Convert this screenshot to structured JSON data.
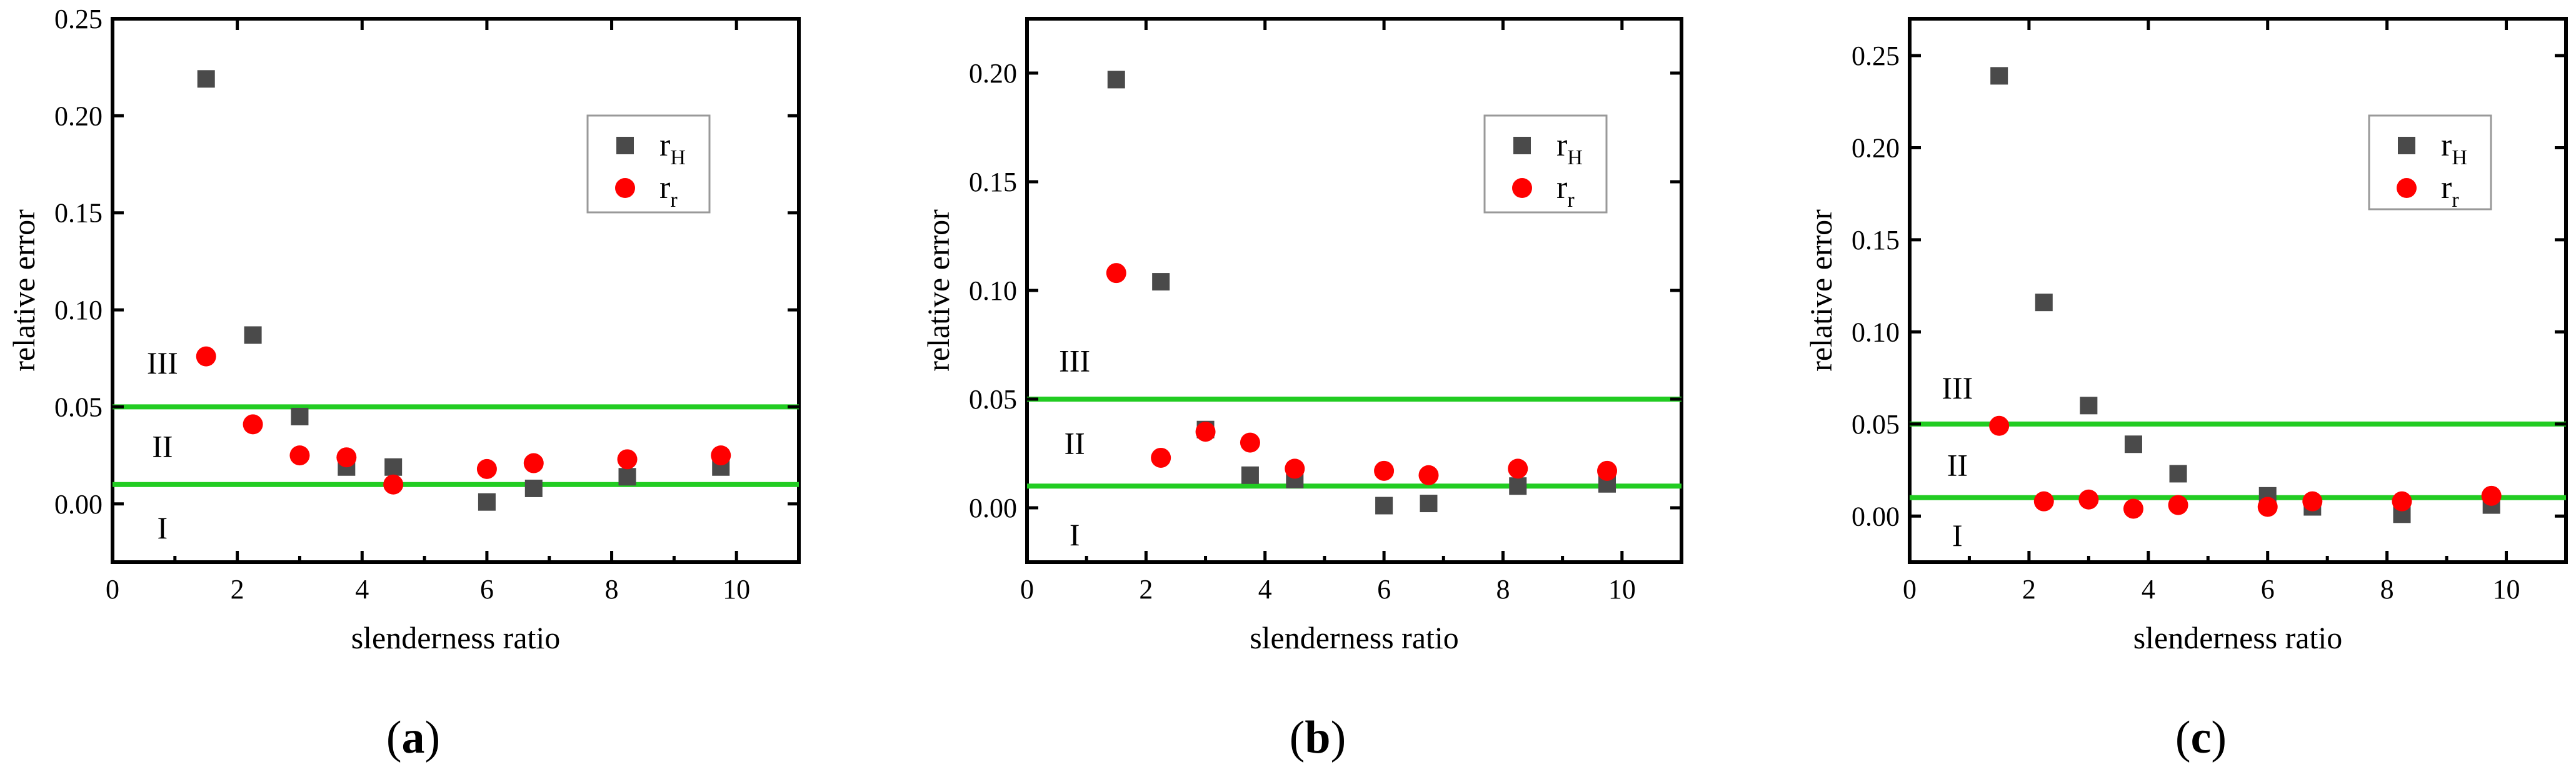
{
  "chart_data": [
    {
      "type": "scatter",
      "panel": "(a)",
      "caption_open": "(",
      "caption_letter": "a",
      "caption_close": ")",
      "xlabel": "slenderness ratio",
      "ylabel": "relative error",
      "xlim": [
        0,
        11
      ],
      "ylim": [
        -0.03,
        0.25
      ],
      "xticks": [
        0,
        2,
        4,
        6,
        8,
        10
      ],
      "xtick_labels": [
        "0",
        "2",
        "4",
        "6",
        "8",
        "10"
      ],
      "yticks": [
        0.0,
        0.05,
        0.1,
        0.15,
        0.2,
        0.25
      ],
      "ytick_labels": [
        "0.00",
        "0.05",
        "0.10",
        "0.15",
        "0.20",
        "0.25"
      ],
      "reference_lines": [
        0.01,
        0.05
      ],
      "regions": [
        {
          "label": "I",
          "x": 0.8,
          "y": -0.012
        },
        {
          "label": "II",
          "x": 0.8,
          "y": 0.03
        },
        {
          "label": "III",
          "x": 0.8,
          "y": 0.073
        }
      ],
      "legend_location": "top-right",
      "series": [
        {
          "name": "r_H",
          "legend_main": "r",
          "legend_sub": "H",
          "marker": "square",
          "color": "#4a4a4a",
          "x": [
            1.5,
            2.25,
            3.0,
            3.75,
            4.5,
            6.0,
            6.75,
            8.25,
            9.75
          ],
          "y": [
            0.219,
            0.087,
            0.045,
            0.019,
            0.019,
            0.001,
            0.008,
            0.014,
            0.019
          ]
        },
        {
          "name": "r_r",
          "legend_main": "r",
          "legend_sub": "r",
          "marker": "circle",
          "color": "#ff0000",
          "x": [
            1.5,
            2.25,
            3.0,
            3.75,
            4.5,
            6.0,
            6.75,
            8.25,
            9.75
          ],
          "y": [
            0.076,
            0.041,
            0.025,
            0.024,
            0.01,
            0.018,
            0.021,
            0.023,
            0.025
          ]
        }
      ]
    },
    {
      "type": "scatter",
      "panel": "(b)",
      "caption_open": "(",
      "caption_letter": "b",
      "caption_close": ")",
      "xlabel": "slenderness ratio",
      "ylabel": "relative error",
      "xlim": [
        0,
        11
      ],
      "ylim": [
        -0.025,
        0.225
      ],
      "xticks": [
        0,
        2,
        4,
        6,
        8,
        10
      ],
      "xtick_labels": [
        "0",
        "2",
        "4",
        "6",
        "8",
        "10"
      ],
      "yticks": [
        0.0,
        0.05,
        0.1,
        0.15,
        0.2
      ],
      "ytick_labels": [
        "0.00",
        "0.05",
        "0.10",
        "0.15",
        "0.20"
      ],
      "reference_lines": [
        0.01,
        0.05
      ],
      "regions": [
        {
          "label": "I",
          "x": 0.8,
          "y": -0.012
        },
        {
          "label": "II",
          "x": 0.8,
          "y": 0.03
        },
        {
          "label": "III",
          "x": 0.8,
          "y": 0.068
        }
      ],
      "legend_location": "top-right",
      "series": [
        {
          "name": "r_H",
          "legend_main": "r",
          "legend_sub": "H",
          "marker": "square",
          "color": "#4a4a4a",
          "x": [
            1.5,
            2.25,
            3.0,
            3.75,
            4.5,
            6.0,
            6.75,
            8.25,
            9.75
          ],
          "y": [
            0.197,
            0.104,
            0.036,
            0.015,
            0.013,
            0.001,
            0.002,
            0.01,
            0.011
          ]
        },
        {
          "name": "r_r",
          "legend_main": "r",
          "legend_sub": "r",
          "marker": "circle",
          "color": "#ff0000",
          "x": [
            1.5,
            2.25,
            3.0,
            3.75,
            4.5,
            6.0,
            6.75,
            8.25,
            9.75
          ],
          "y": [
            0.108,
            0.023,
            0.035,
            0.03,
            0.018,
            0.017,
            0.015,
            0.018,
            0.017
          ]
        }
      ]
    },
    {
      "type": "scatter",
      "panel": "(c)",
      "caption_open": "(",
      "caption_letter": "c",
      "caption_close": ")",
      "xlabel": "slenderness ratio",
      "ylabel": "relative error",
      "xlim": [
        0,
        11
      ],
      "ylim": [
        -0.025,
        0.27
      ],
      "xticks": [
        0,
        2,
        4,
        6,
        8,
        10
      ],
      "xtick_labels": [
        "0",
        "2",
        "4",
        "6",
        "8",
        "10"
      ],
      "yticks": [
        0.0,
        0.05,
        0.1,
        0.15,
        0.2,
        0.25
      ],
      "ytick_labels": [
        "0.00",
        "0.05",
        "0.10",
        "0.15",
        "0.20",
        "0.25"
      ],
      "reference_lines": [
        0.01,
        0.05
      ],
      "regions": [
        {
          "label": "I",
          "x": 0.8,
          "y": -0.01
        },
        {
          "label": "II",
          "x": 0.8,
          "y": 0.028
        },
        {
          "label": "III",
          "x": 0.8,
          "y": 0.07
        }
      ],
      "legend_location": "top-right",
      "series": [
        {
          "name": "r_H",
          "legend_main": "r",
          "legend_sub": "H",
          "marker": "square",
          "color": "#4a4a4a",
          "x": [
            1.5,
            2.25,
            3.0,
            3.75,
            4.5,
            6.0,
            6.75,
            8.25,
            9.75
          ],
          "y": [
            0.239,
            0.116,
            0.06,
            0.039,
            0.023,
            0.011,
            0.005,
            0.001,
            0.006
          ]
        },
        {
          "name": "r_r",
          "legend_main": "r",
          "legend_sub": "r",
          "marker": "circle",
          "color": "#ff0000",
          "x": [
            1.5,
            2.25,
            3.0,
            3.75,
            4.5,
            6.0,
            6.75,
            8.25,
            9.75
          ],
          "y": [
            0.049,
            0.008,
            0.009,
            0.004,
            0.006,
            0.005,
            0.008,
            0.008,
            0.011
          ]
        }
      ]
    }
  ]
}
